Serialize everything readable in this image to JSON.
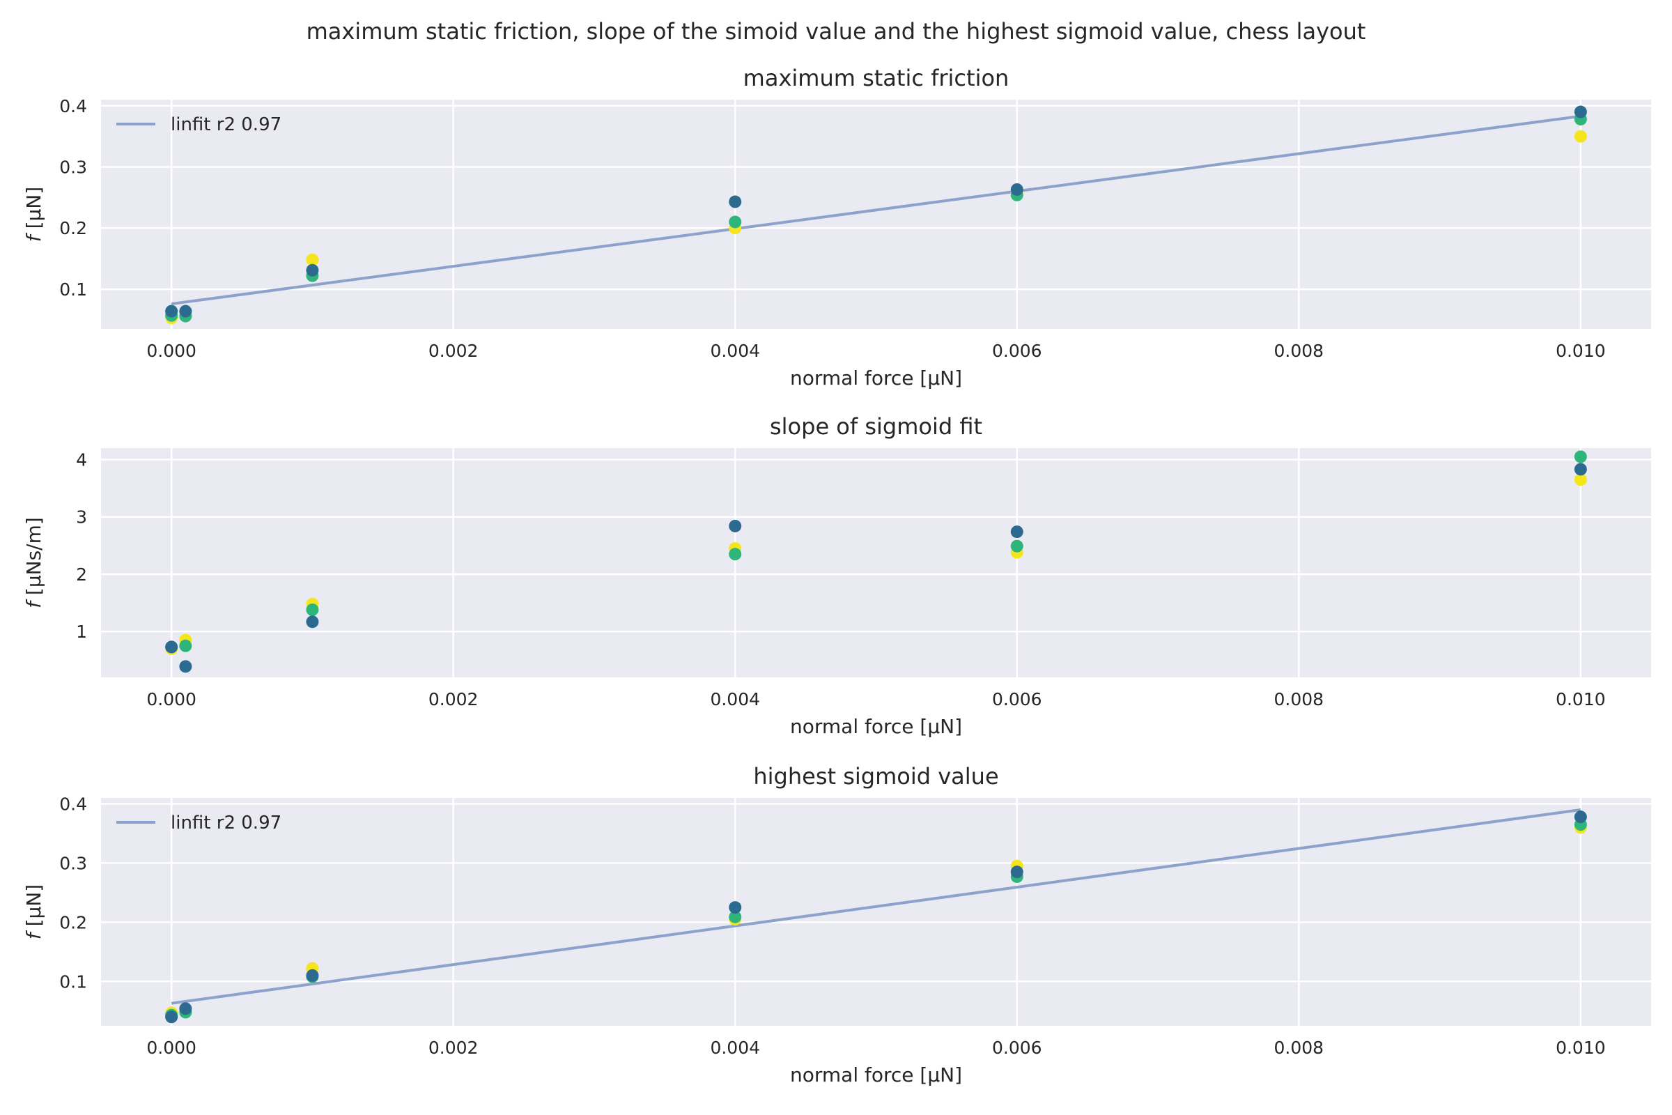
{
  "suptitle": "maximum static friction, slope of the simoid value and the highest sigmoid value, chess layout",
  "colors": {
    "panel_bg": "#EAEAF2",
    "grid": "#FFFFFF",
    "fit_line": "#8DA2CB",
    "series_yellow": "#F4E51D",
    "series_green": "#2DB57A",
    "series_blue": "#2C6B8F"
  },
  "chart_data": [
    {
      "type": "scatter",
      "title": "maximum static friction",
      "xlabel": "normal force [μN]",
      "ylabel": "f [μN]",
      "xlim": [
        -0.0005,
        0.0105
      ],
      "ylim": [
        0.035,
        0.41
      ],
      "x_ticks": [
        0.0,
        0.002,
        0.004,
        0.006,
        0.008,
        0.01
      ],
      "x_tick_labels": [
        "0.000",
        "0.002",
        "0.004",
        "0.006",
        "0.008",
        "0.010"
      ],
      "y_ticks": [
        0.1,
        0.2,
        0.3,
        0.4
      ],
      "y_tick_labels": [
        "0.1",
        "0.2",
        "0.3",
        "0.4"
      ],
      "grid": true,
      "legend": {
        "position": "top-left",
        "label": "linfit r2 0.97"
      },
      "fit_line": {
        "x": [
          0.0,
          0.01
        ],
        "y": [
          0.076,
          0.383
        ]
      },
      "series": [
        {
          "color": "series_yellow",
          "x": [
            0.0,
            0.0001,
            0.001,
            0.004,
            0.006,
            0.01
          ],
          "y": [
            0.053,
            0.058,
            0.148,
            0.2,
            0.258,
            0.35
          ]
        },
        {
          "color": "series_green",
          "x": [
            0.0,
            0.0001,
            0.001,
            0.004,
            0.006,
            0.01
          ],
          "y": [
            0.057,
            0.056,
            0.122,
            0.21,
            0.254,
            0.378
          ]
        },
        {
          "color": "series_blue",
          "x": [
            0.0,
            0.0001,
            0.001,
            0.004,
            0.006,
            0.01
          ],
          "y": [
            0.064,
            0.064,
            0.131,
            0.243,
            0.263,
            0.39
          ]
        }
      ]
    },
    {
      "type": "scatter",
      "title": "slope of sigmoid fit",
      "xlabel": "normal force [μN]",
      "ylabel": "f [μNs/m]",
      "xlim": [
        -0.0005,
        0.0105
      ],
      "ylim": [
        0.2,
        4.2
      ],
      "x_ticks": [
        0.0,
        0.002,
        0.004,
        0.006,
        0.008,
        0.01
      ],
      "x_tick_labels": [
        "0.000",
        "0.002",
        "0.004",
        "0.006",
        "0.008",
        "0.010"
      ],
      "y_ticks": [
        1,
        2,
        3,
        4
      ],
      "y_tick_labels": [
        "1",
        "2",
        "3",
        "4"
      ],
      "grid": true,
      "legend": null,
      "fit_line": null,
      "series": [
        {
          "color": "series_yellow",
          "x": [
            0.0,
            0.0001,
            0.001,
            0.004,
            0.006,
            0.01
          ],
          "y": [
            0.7,
            0.85,
            1.48,
            2.45,
            2.38,
            3.65
          ]
        },
        {
          "color": "series_green",
          "x": [
            0.0,
            0.0001,
            0.001,
            0.004,
            0.006,
            0.01
          ],
          "y": [
            0.73,
            0.75,
            1.38,
            2.35,
            2.49,
            4.05
          ]
        },
        {
          "color": "series_blue",
          "x": [
            0.0,
            0.0001,
            0.001,
            0.004,
            0.006,
            0.01
          ],
          "y": [
            0.73,
            0.39,
            1.17,
            2.84,
            2.74,
            3.83
          ]
        }
      ]
    },
    {
      "type": "scatter",
      "title": "highest sigmoid value",
      "xlabel": "normal force [μN]",
      "ylabel": "f [μN]",
      "xlim": [
        -0.0005,
        0.0105
      ],
      "ylim": [
        0.025,
        0.41
      ],
      "x_ticks": [
        0.0,
        0.002,
        0.004,
        0.006,
        0.008,
        0.01
      ],
      "x_tick_labels": [
        "0.000",
        "0.002",
        "0.004",
        "0.006",
        "0.008",
        "0.010"
      ],
      "y_ticks": [
        0.1,
        0.2,
        0.3,
        0.4
      ],
      "y_tick_labels": [
        "0.1",
        "0.2",
        "0.3",
        "0.4"
      ],
      "grid": true,
      "legend": {
        "position": "top-left",
        "label": "linfit r2 0.97"
      },
      "fit_line": {
        "x": [
          0.0,
          0.01
        ],
        "y": [
          0.063,
          0.39
        ]
      },
      "series": [
        {
          "color": "series_yellow",
          "x": [
            0.0,
            0.0001,
            0.001,
            0.004,
            0.006,
            0.01
          ],
          "y": [
            0.047,
            0.05,
            0.122,
            0.205,
            0.295,
            0.36
          ]
        },
        {
          "color": "series_green",
          "x": [
            0.0,
            0.0001,
            0.001,
            0.004,
            0.006,
            0.01
          ],
          "y": [
            0.043,
            0.048,
            0.108,
            0.209,
            0.277,
            0.365
          ]
        },
        {
          "color": "series_blue",
          "x": [
            0.0,
            0.0001,
            0.001,
            0.004,
            0.006,
            0.01
          ],
          "y": [
            0.04,
            0.054,
            0.11,
            0.225,
            0.285,
            0.378
          ]
        }
      ]
    }
  ]
}
